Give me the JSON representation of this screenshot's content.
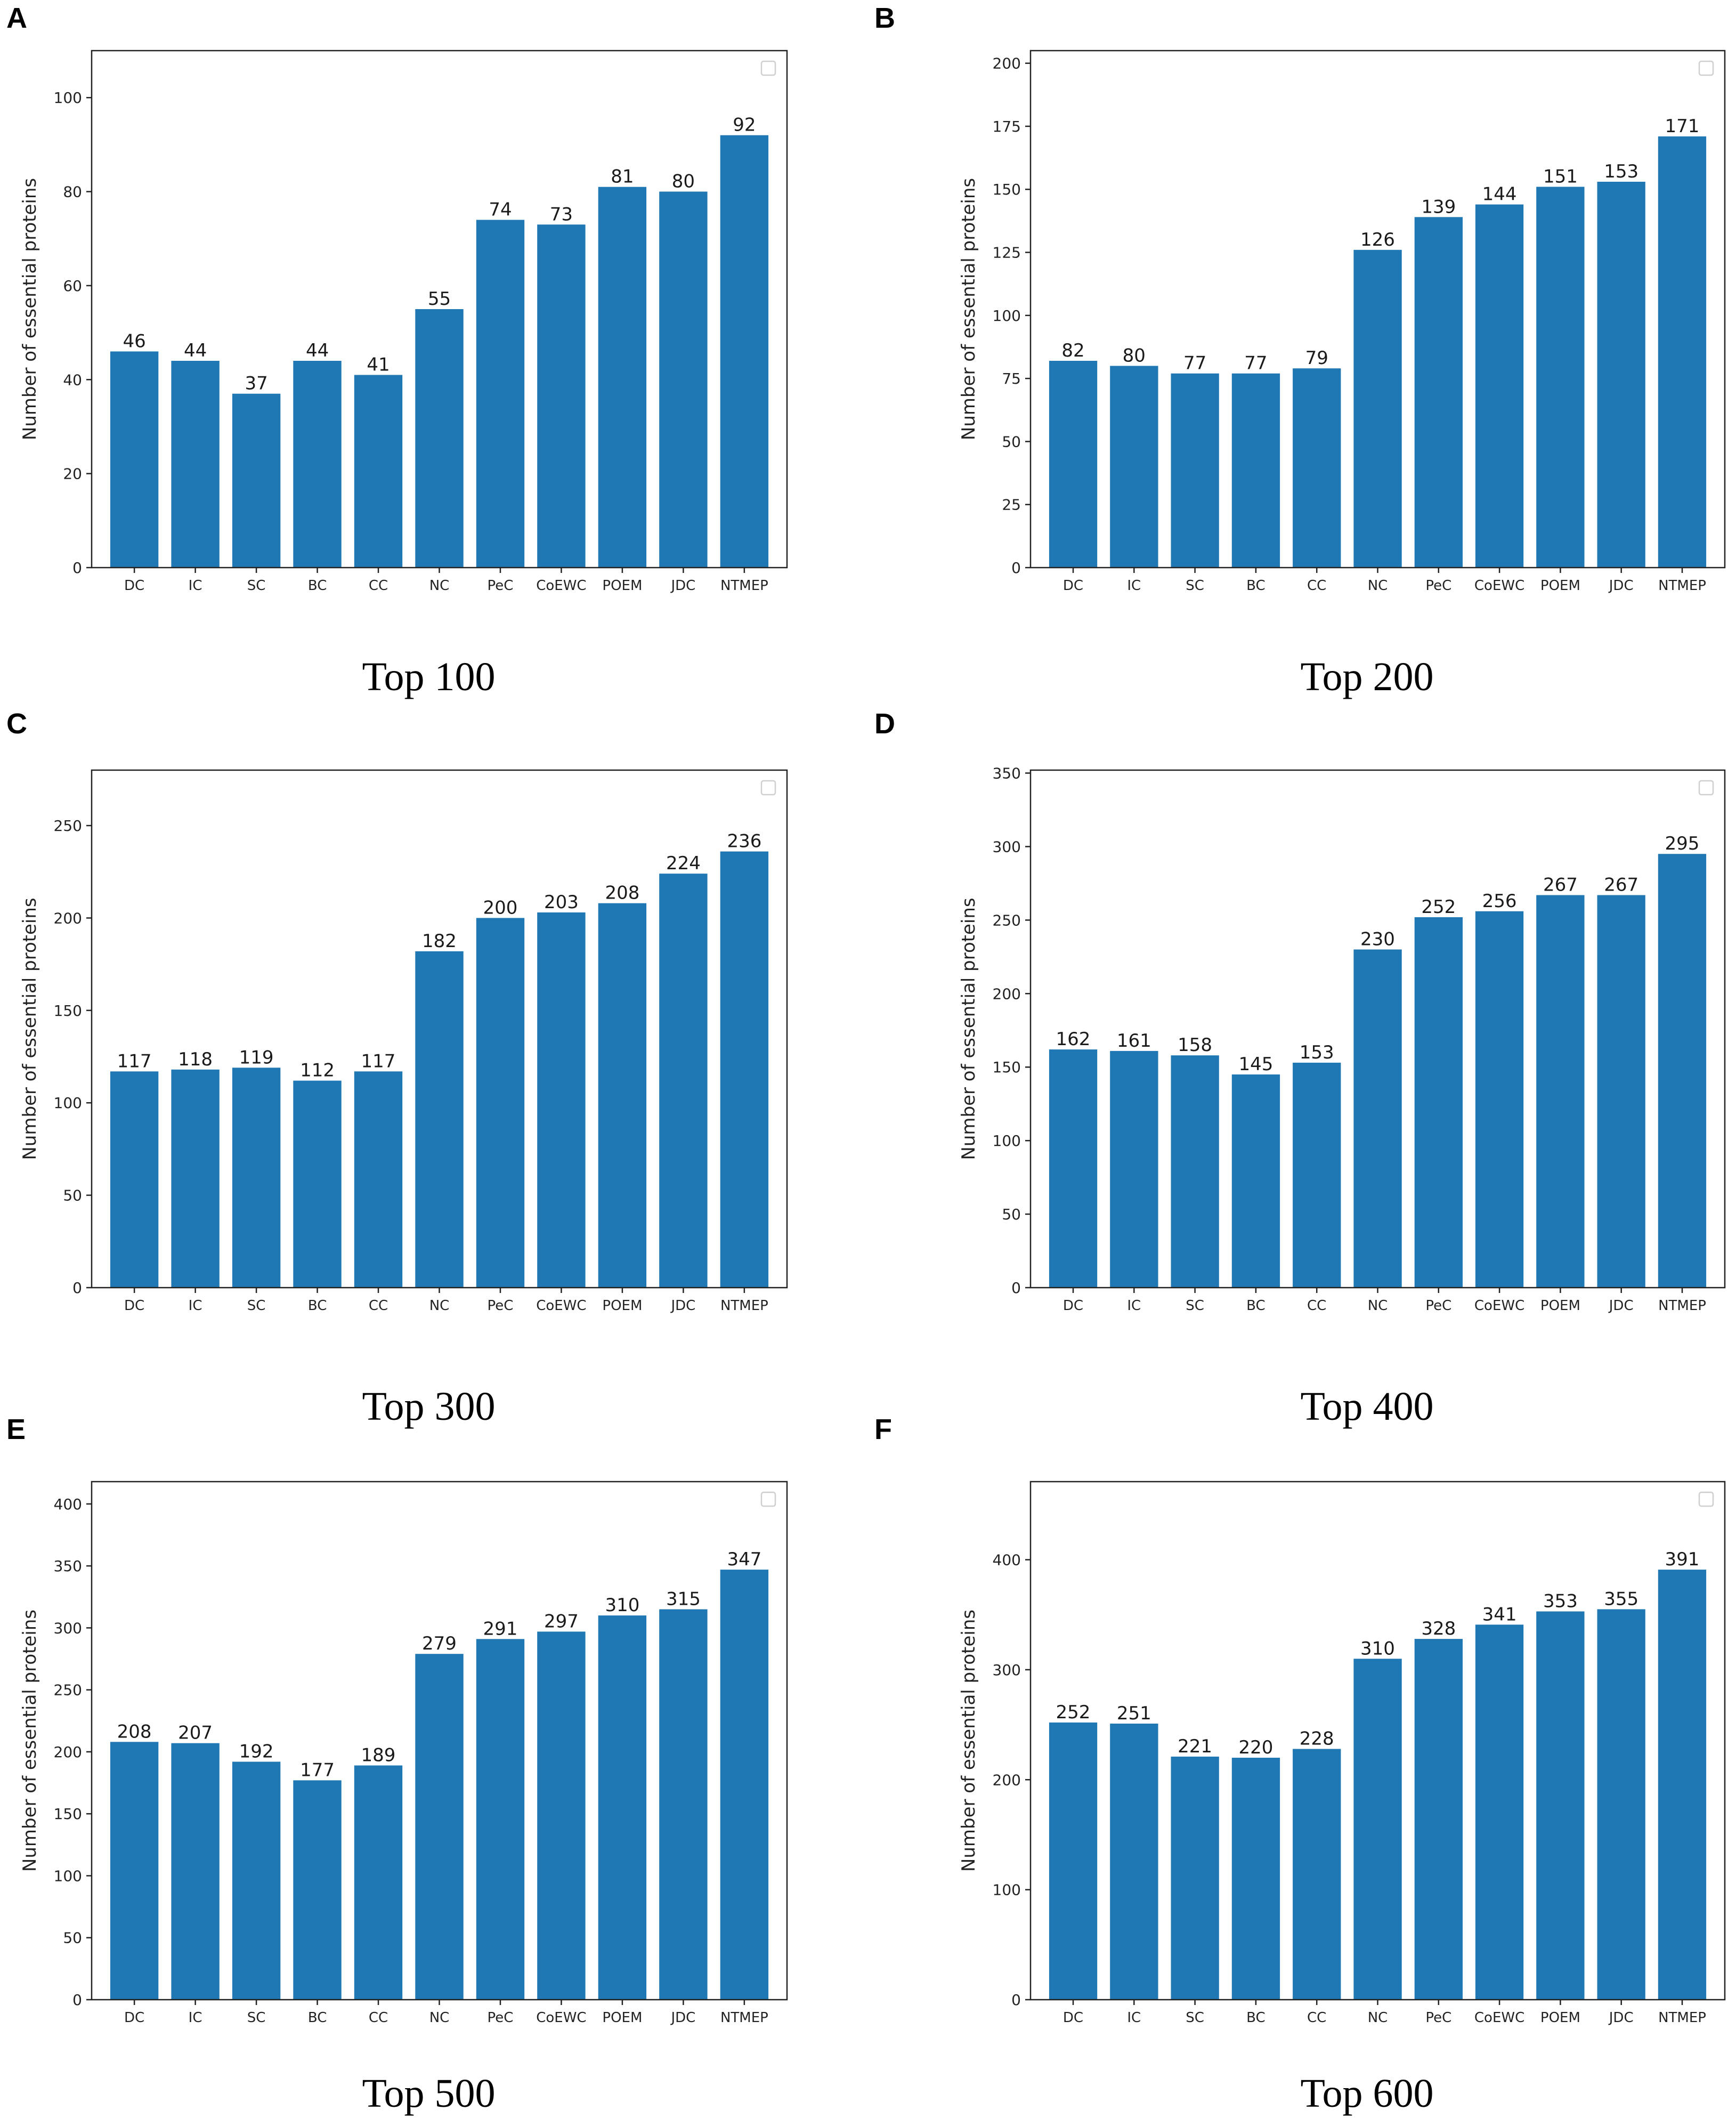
{
  "ylabel": "Number of essential proteins",
  "chart_data": [
    {
      "type": "bar",
      "panel": "A",
      "caption": "Top 100",
      "categories": [
        "DC",
        "IC",
        "SC",
        "BC",
        "CC",
        "NC",
        "PeC",
        "CoEWC",
        "POEM",
        "JDC",
        "NTMEP"
      ],
      "values": [
        46,
        44,
        37,
        44,
        41,
        55,
        74,
        73,
        81,
        80,
        92
      ],
      "ylabel": "Number of essential proteins",
      "ylim": [
        0,
        110
      ],
      "yticks": [
        0,
        20,
        40,
        60,
        80,
        100
      ],
      "color": "#1f77b4",
      "legend": "top-right (empty)"
    },
    {
      "type": "bar",
      "panel": "B",
      "caption": "Top 200",
      "categories": [
        "DC",
        "IC",
        "SC",
        "BC",
        "CC",
        "NC",
        "PeC",
        "CoEWC",
        "POEM",
        "JDC",
        "NTMEP"
      ],
      "values": [
        82,
        80,
        77,
        77,
        79,
        126,
        139,
        144,
        151,
        153,
        171
      ],
      "ylabel": "Number of essential proteins",
      "ylim": [
        0,
        205
      ],
      "yticks": [
        0,
        25,
        50,
        75,
        100,
        125,
        150,
        175,
        200
      ],
      "color": "#1f77b4",
      "legend": "top-right (empty)"
    },
    {
      "type": "bar",
      "panel": "C",
      "caption": "Top 300",
      "categories": [
        "DC",
        "IC",
        "SC",
        "BC",
        "CC",
        "NC",
        "PeC",
        "CoEWC",
        "POEM",
        "JDC",
        "NTMEP"
      ],
      "values": [
        117,
        118,
        119,
        112,
        117,
        182,
        200,
        203,
        208,
        224,
        236
      ],
      "ylabel": "Number of essential proteins",
      "ylim": [
        0,
        280
      ],
      "yticks": [
        0,
        50,
        100,
        150,
        200,
        250
      ],
      "color": "#1f77b4",
      "legend": "top-right (empty)"
    },
    {
      "type": "bar",
      "panel": "D",
      "caption": "Top 400",
      "categories": [
        "DC",
        "IC",
        "SC",
        "BC",
        "CC",
        "NC",
        "PeC",
        "CoEWC",
        "POEM",
        "JDC",
        "NTMEP"
      ],
      "values": [
        162,
        161,
        158,
        145,
        153,
        230,
        252,
        256,
        267,
        267,
        295
      ],
      "ylabel": "Number of essential proteins",
      "ylim": [
        0,
        352
      ],
      "yticks": [
        0,
        50,
        100,
        150,
        200,
        250,
        300,
        350
      ],
      "color": "#1f77b4",
      "legend": "top-right (empty)"
    },
    {
      "type": "bar",
      "panel": "E",
      "caption": "Top 500",
      "categories": [
        "DC",
        "IC",
        "SC",
        "BC",
        "CC",
        "NC",
        "PeC",
        "CoEWC",
        "POEM",
        "JDC",
        "NTMEP"
      ],
      "values": [
        208,
        207,
        192,
        177,
        189,
        279,
        291,
        297,
        310,
        315,
        347
      ],
      "ylabel": "Number of essential proteins",
      "ylim": [
        0,
        418
      ],
      "yticks": [
        0,
        50,
        100,
        150,
        200,
        250,
        300,
        350,
        400
      ],
      "color": "#1f77b4",
      "legend": "top-right (empty)"
    },
    {
      "type": "bar",
      "panel": "F",
      "caption": "Top 600",
      "categories": [
        "DC",
        "IC",
        "SC",
        "BC",
        "CC",
        "NC",
        "PeC",
        "CoEWC",
        "POEM",
        "JDC",
        "NTMEP"
      ],
      "values": [
        252,
        251,
        221,
        220,
        228,
        310,
        328,
        341,
        353,
        355,
        391
      ],
      "ylabel": "Number of essential proteins",
      "ylim": [
        0,
        471
      ],
      "yticks": [
        0,
        100,
        200,
        300,
        400
      ],
      "color": "#1f77b4",
      "legend": "top-right (empty)"
    }
  ]
}
